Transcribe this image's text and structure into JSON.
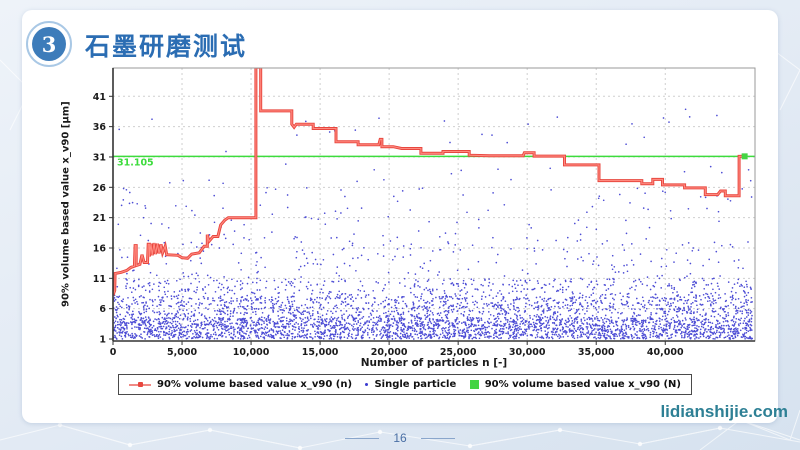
{
  "slide": {
    "section_number": "3",
    "title": "石墨研磨测试",
    "page_number": "16",
    "watermark": "lidianshijie.com"
  },
  "chart_data": {
    "type": "line+scatter",
    "title": "",
    "xlabel": "Number of particles n [-]",
    "ylabel": "90% volume based value x_v90 [µm]",
    "xlim": [
      0,
      46500
    ],
    "ylim": [
      0.5,
      45.8
    ],
    "x_tick_values": [
      0,
      5000,
      10000,
      15000,
      20000,
      25000,
      30000,
      35000,
      40000
    ],
    "x_tick_labels": [
      "0",
      "5,000",
      "10,000",
      "15,000",
      "20,000",
      "25,000",
      "30,000",
      "35,000",
      "40,000"
    ],
    "y_tick_values": [
      1,
      6,
      11,
      16,
      21,
      26,
      31,
      36,
      41
    ],
    "grid": true,
    "legend_position": "bottom",
    "legend": [
      "90% volume based value x_v90 (n)",
      "Single particle",
      "90% volume based value x_v90 (N)"
    ],
    "colors": {
      "red_line": "#e8473f",
      "red_line_core": "#ff8a80",
      "scatter": "#3a3ad0",
      "reference": "#3ddc3d",
      "grid": "#cfcfcf",
      "axis": "#333333",
      "frame": "#999999"
    },
    "reference_line": {
      "value": 31.105,
      "label": "31.105",
      "series": "90% volume based value x_v90 (N)",
      "color": "#3ddc3d"
    },
    "final_marker": {
      "series": "90% volume based value x_v90 (N)",
      "point": [
        45750,
        31.105
      ],
      "color": "#44d444"
    },
    "series": [
      {
        "name": "90% volume based value x_v90 (n)",
        "type": "step-line",
        "color": "#e8473f",
        "points": [
          [
            0,
            8.2
          ],
          [
            120,
            9.0
          ],
          [
            150,
            11.8
          ],
          [
            600,
            12.0
          ],
          [
            1000,
            12.3
          ],
          [
            1300,
            12.8
          ],
          [
            1550,
            13.0
          ],
          [
            1600,
            16.4
          ],
          [
            1680,
            16.4
          ],
          [
            1680,
            13.1
          ],
          [
            1950,
            13.3
          ],
          [
            2100,
            14.9
          ],
          [
            2250,
            13.6
          ],
          [
            2500,
            13.6
          ],
          [
            2550,
            16.6
          ],
          [
            2640,
            16.6
          ],
          [
            2640,
            14.6
          ],
          [
            2750,
            16.7
          ],
          [
            2840,
            14.8
          ],
          [
            2980,
            16.8
          ],
          [
            3080,
            15.0
          ],
          [
            3220,
            16.7
          ],
          [
            3330,
            15.1
          ],
          [
            3480,
            16.6
          ],
          [
            3590,
            15.2
          ],
          [
            3780,
            16.3
          ],
          [
            3890,
            14.9
          ],
          [
            4700,
            14.8
          ],
          [
            5000,
            14.4
          ],
          [
            5400,
            14.3
          ],
          [
            5700,
            15.0
          ],
          [
            6250,
            15.2
          ],
          [
            6600,
            16.3
          ],
          [
            6830,
            16.3
          ],
          [
            6830,
            18.2
          ],
          [
            6950,
            17.1
          ],
          [
            7250,
            17.9
          ],
          [
            7600,
            17.9
          ],
          [
            7800,
            19.8
          ],
          [
            8100,
            20.6
          ],
          [
            8350,
            21.0
          ],
          [
            10350,
            21.0
          ],
          [
            10350,
            45.8
          ],
          [
            10700,
            45.8
          ],
          [
            10700,
            38.6
          ],
          [
            12950,
            38.6
          ],
          [
            12950,
            36.4
          ],
          [
            13120,
            35.9
          ],
          [
            13280,
            36.4
          ],
          [
            14500,
            36.4
          ],
          [
            14500,
            35.7
          ],
          [
            16150,
            35.7
          ],
          [
            16150,
            33.5
          ],
          [
            17750,
            33.5
          ],
          [
            17750,
            33.0
          ],
          [
            19250,
            33.0
          ],
          [
            19350,
            33.9
          ],
          [
            19480,
            33.9
          ],
          [
            19480,
            32.7
          ],
          [
            20300,
            32.7
          ],
          [
            20900,
            32.4
          ],
          [
            22300,
            32.4
          ],
          [
            22300,
            31.6
          ],
          [
            23900,
            31.6
          ],
          [
            23900,
            31.9
          ],
          [
            25800,
            31.9
          ],
          [
            25800,
            31.3
          ],
          [
            27300,
            31.2
          ],
          [
            29700,
            31.2
          ],
          [
            29800,
            31.7
          ],
          [
            30500,
            31.7
          ],
          [
            30500,
            31.15
          ],
          [
            32700,
            31.15
          ],
          [
            32700,
            29.7
          ],
          [
            35200,
            29.7
          ],
          [
            35200,
            27.1
          ],
          [
            38300,
            27.1
          ],
          [
            38300,
            26.6
          ],
          [
            39100,
            26.6
          ],
          [
            39100,
            27.3
          ],
          [
            39800,
            27.3
          ],
          [
            39800,
            26.4
          ],
          [
            41400,
            26.4
          ],
          [
            41400,
            25.9
          ],
          [
            42900,
            25.9
          ],
          [
            42900,
            24.8
          ],
          [
            43800,
            24.8
          ],
          [
            44000,
            25.4
          ],
          [
            44350,
            25.4
          ],
          [
            44350,
            24.6
          ],
          [
            45350,
            24.6
          ],
          [
            45350,
            31.1
          ],
          [
            45750,
            31.105
          ]
        ]
      },
      {
        "name": "Single particle",
        "type": "scatter",
        "color": "#3a3ad0",
        "approx_count": 4600,
        "x_range": [
          0,
          46300
        ],
        "y_bands": [
          [
            1,
            4.5,
            0.58
          ],
          [
            4.5,
            8,
            0.25
          ],
          [
            8,
            11,
            0.09
          ],
          [
            11,
            18,
            0.05
          ],
          [
            18,
            26,
            0.022
          ],
          [
            26,
            39,
            0.008
          ]
        ],
        "note": "dense random cloud of single-particle sizes, heaviest between 1 and 8 um"
      }
    ]
  }
}
